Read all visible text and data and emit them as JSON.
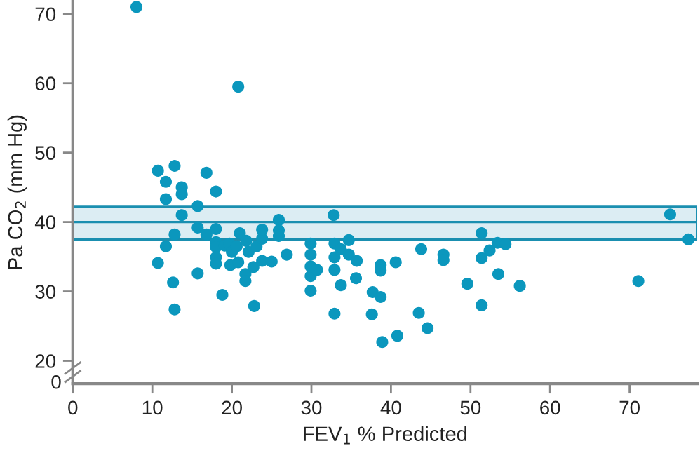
{
  "chart_data": {
    "type": "scatter",
    "xlabel": "FEV$_{1}$ % Predicted",
    "ylabel": "Pa CO$_{2}$ (mm Hg)",
    "xlim": [
      0,
      78.5
    ],
    "ylim": [
      16.7,
      71.8
    ],
    "xticks": [
      0,
      10,
      20,
      30,
      40,
      50,
      60,
      70
    ],
    "yticks": [
      20,
      30,
      40,
      50,
      60,
      70
    ],
    "annotations": [
      "0"
    ],
    "bands": [
      {
        "axis": "y",
        "from": 37.5,
        "to": 42.2,
        "color": "#dcedf3"
      }
    ],
    "ref_lines": [
      {
        "axis": "y",
        "value": 40,
        "color": "#1a8fb0"
      }
    ],
    "series": [
      {
        "color": "#0b97bd",
        "x": [
          8.0,
          20.8,
          10.7,
          12.8,
          11.7,
          13.7,
          13.7,
          11.7,
          16.8,
          18.0,
          15.7,
          13.7,
          25.9,
          32.8,
          15.7,
          12.8,
          16.8,
          18.0,
          11.7,
          10.7,
          15.7,
          12.6,
          12.8,
          18.0,
          18.0,
          18.0,
          18.0,
          18.8,
          19.1,
          19.7,
          20.0,
          20.6,
          19.8,
          21.0,
          20.8,
          21.8,
          22.1,
          21.7,
          21.7,
          22.8,
          22.7,
          23.1,
          23.8,
          23.8,
          23.8,
          25.0,
          25.9,
          25.9,
          26.9,
          29.9,
          29.9,
          29.9,
          29.9,
          30.7,
          29.9,
          32.9,
          32.9,
          32.9,
          32.9,
          33.7,
          33.7,
          34.7,
          34.7,
          75.1,
          77.4,
          51.4,
          53.4,
          54.4,
          52.4,
          51.4,
          53.5,
          56.2,
          51.4,
          49.6,
          46.6,
          46.6,
          43.8,
          40.6,
          38.7,
          38.7,
          35.6,
          35.7,
          37.7,
          38.7,
          37.6,
          38.9,
          40.8,
          43.5,
          44.6,
          71.1
        ],
        "values": [
          71.0,
          59.5,
          47.4,
          48.1,
          45.8,
          45.0,
          44.0,
          43.3,
          47.1,
          44.4,
          42.3,
          41.0,
          40.3,
          41.0,
          39.2,
          38.2,
          38.2,
          39.0,
          36.5,
          34.1,
          32.6,
          31.3,
          27.4,
          37.1,
          36.4,
          34.9,
          34.0,
          29.5,
          36.6,
          36.9,
          35.7,
          36.5,
          33.8,
          38.4,
          34.2,
          37.3,
          35.7,
          32.5,
          31.5,
          27.9,
          33.5,
          36.5,
          37.6,
          38.9,
          34.4,
          34.3,
          38.8,
          38.0,
          35.3,
          36.9,
          35.3,
          33.6,
          32.2,
          33.1,
          30.1,
          36.9,
          34.9,
          33.1,
          26.8,
          36.1,
          30.9,
          37.4,
          35.3,
          41.1,
          37.5,
          38.4,
          37.0,
          36.8,
          35.9,
          34.8,
          32.5,
          30.8,
          28.0,
          31.1,
          35.3,
          34.5,
          36.1,
          34.2,
          33.8,
          33.0,
          31.9,
          34.4,
          29.9,
          29.2,
          26.7,
          22.7,
          23.6,
          26.9,
          24.7,
          31.5
        ]
      }
    ]
  }
}
